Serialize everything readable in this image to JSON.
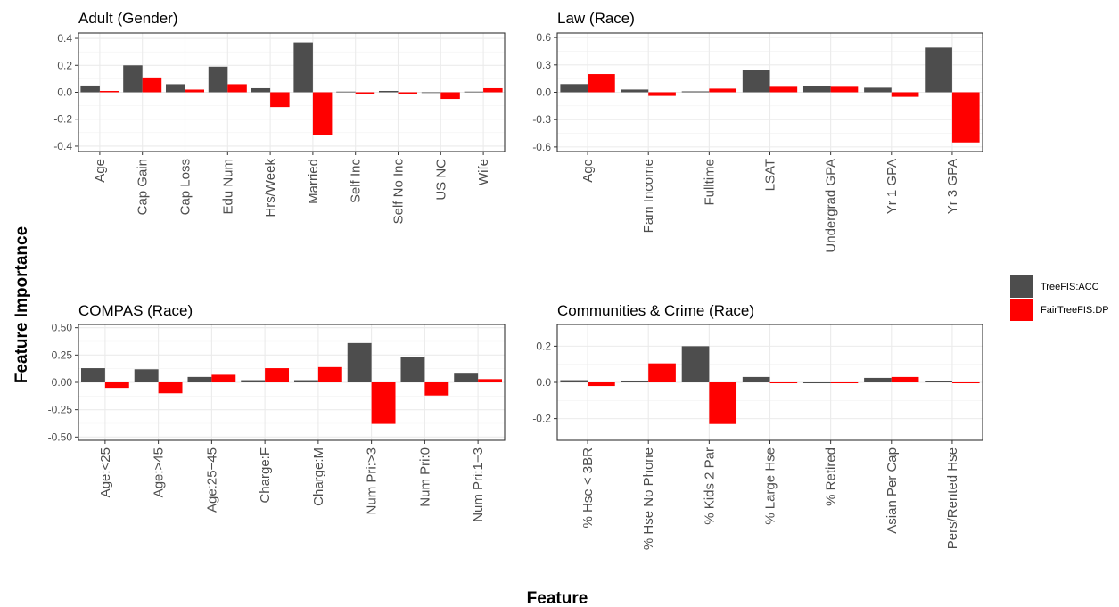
{
  "axis_titles": {
    "x": "Feature",
    "y": "Feature Importance"
  },
  "legend": [
    {
      "name": "TreeFIS:ACC",
      "color": "#4d4d4d"
    },
    {
      "name": "FairTreeFIS:DP",
      "color": "#ff0000"
    }
  ],
  "chart_data": [
    {
      "type": "bar",
      "title": "Adult (Gender)",
      "xlabel": "Feature",
      "ylabel": "Feature Importance",
      "ylim": [
        -0.44,
        0.44
      ],
      "yticks": [
        -0.4,
        -0.2,
        0.0,
        0.2,
        0.4
      ],
      "ytick_labels": [
        "-0.4",
        "-0.2",
        "0.0",
        "0.2",
        "0.4"
      ],
      "grid": true,
      "categories": [
        "Age",
        "Cap Gain",
        "Cap Loss",
        "Edu Num",
        "Hrs/Week",
        "Married",
        "Self Inc",
        "Self No Inc",
        "US NC",
        "Wife"
      ],
      "series": [
        {
          "name": "TreeFIS:ACC",
          "values": [
            0.05,
            0.2,
            0.06,
            0.19,
            0.03,
            0.37,
            0.005,
            0.01,
            -0.005,
            0.005
          ]
        },
        {
          "name": "FairTreeFIS:DP",
          "values": [
            0.01,
            0.11,
            0.02,
            0.06,
            -0.11,
            -0.32,
            -0.015,
            -0.015,
            -0.05,
            0.03
          ]
        }
      ]
    },
    {
      "type": "bar",
      "title": "Law (Race)",
      "xlabel": "Feature",
      "ylabel": "Feature Importance",
      "ylim": [
        -0.65,
        0.65
      ],
      "yticks": [
        -0.6,
        -0.3,
        0.0,
        0.3,
        0.6
      ],
      "ytick_labels": [
        "-0.6",
        "-0.3",
        "0.0",
        "0.3",
        "0.6"
      ],
      "grid": true,
      "categories": [
        "Age",
        "Fam Income",
        "Fulltime",
        "LSAT",
        "Undergrad GPA",
        "Yr 1 GPA",
        "Yr 3 GPA"
      ],
      "series": [
        {
          "name": "TreeFIS:ACC",
          "values": [
            0.09,
            0.03,
            0.01,
            0.24,
            0.07,
            0.05,
            0.49
          ]
        },
        {
          "name": "FairTreeFIS:DP",
          "values": [
            0.2,
            -0.04,
            0.04,
            0.06,
            0.06,
            -0.05,
            -0.55
          ]
        }
      ]
    },
    {
      "type": "bar",
      "title": "COMPAS (Race)",
      "xlabel": "Feature",
      "ylabel": "Feature Importance",
      "ylim": [
        -0.53,
        0.53
      ],
      "yticks": [
        -0.5,
        -0.25,
        0.0,
        0.25,
        0.5
      ],
      "ytick_labels": [
        "-0.50",
        "-0.25",
        "0.00",
        "0.25",
        "0.50"
      ],
      "grid": true,
      "categories": [
        "Age:<25",
        "Age:>45",
        "Age:25−45",
        "Charge:F",
        "Charge:M",
        "Num Pri:>3",
        "Num Pri:0",
        "Num Pri:1−3"
      ],
      "series": [
        {
          "name": "TreeFIS:ACC",
          "values": [
            0.13,
            0.12,
            0.05,
            0.02,
            0.02,
            0.36,
            0.23,
            0.08
          ]
        },
        {
          "name": "FairTreeFIS:DP",
          "values": [
            -0.05,
            -0.1,
            0.07,
            0.13,
            0.14,
            -0.38,
            -0.12,
            0.03
          ]
        }
      ]
    },
    {
      "type": "bar",
      "title": "Communities & Crime (Race)",
      "xlabel": "Feature",
      "ylabel": "Feature Importance",
      "ylim": [
        -0.32,
        0.32
      ],
      "yticks": [
        -0.2,
        0.0,
        0.2
      ],
      "ytick_labels": [
        "-0.2",
        "0.0",
        "0.2"
      ],
      "grid": true,
      "categories": [
        "% Hse < 3BR",
        "% Hse No Phone",
        "% Kids 2 Par",
        "% Large Hse",
        "% Retired",
        "Asian Per Cap",
        "Pers/Rented Hse"
      ],
      "series": [
        {
          "name": "TreeFIS:ACC",
          "values": [
            0.012,
            0.01,
            0.2,
            0.03,
            -0.005,
            0.025,
            0.005
          ]
        },
        {
          "name": "FairTreeFIS:DP",
          "values": [
            -0.02,
            0.105,
            -0.23,
            -0.005,
            -0.005,
            0.03,
            -0.005
          ]
        }
      ]
    }
  ]
}
